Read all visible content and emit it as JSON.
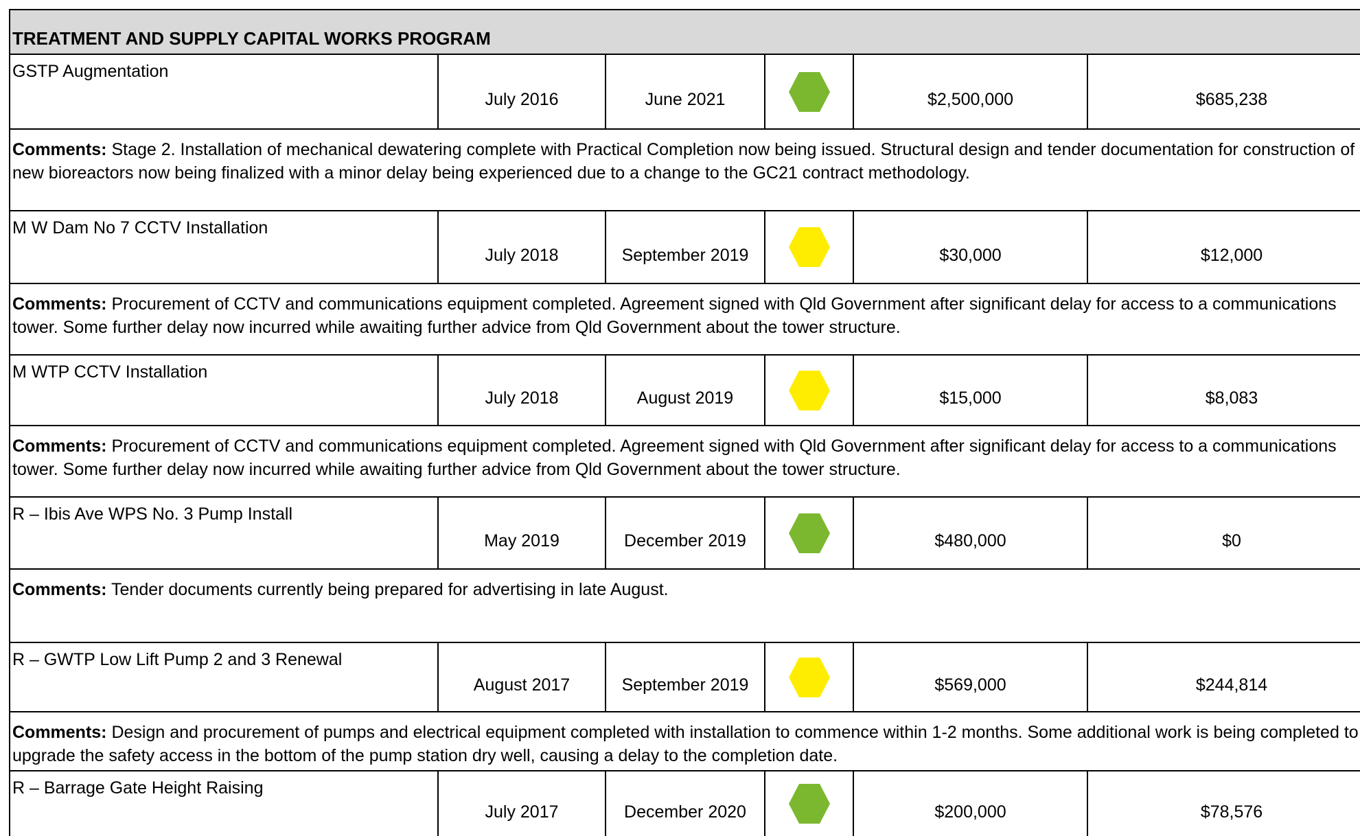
{
  "header": {
    "title": "TREATMENT AND SUPPLY CAPITAL WORKS PROGRAM"
  },
  "comments_label": "Comments:",
  "projects": [
    {
      "name": "GSTP Augmentation",
      "start": "July 2016",
      "end": "June 2021",
      "status_color": "#7cb82f",
      "budget": "$2,500,000",
      "spent": "$685,238",
      "comment": "Stage 2. Installation of mechanical dewatering complete with Practical Completion now being issued. Structural design and tender documentation for construction of new bioreactors now being finalized with a minor delay being experienced due to a change to the GC21 contract methodology."
    },
    {
      "name": "M W Dam No 7 CCTV Installation",
      "start": "July 2018",
      "end": "September 2019",
      "status_color": "#ffed00",
      "budget": "$30,000",
      "spent": "$12,000",
      "comment": "Procurement of CCTV and communications equipment completed. Agreement signed with Qld Government after significant delay for access to a communications tower. Some further delay now incurred while awaiting further advice from Qld Government about the tower structure."
    },
    {
      "name": "M WTP CCTV Installation",
      "start": "July 2018",
      "end": "August 2019",
      "status_color": "#ffed00",
      "budget": "$15,000",
      "spent": "$8,083",
      "comment": "Procurement of CCTV and communications equipment completed. Agreement signed with Qld Government after significant delay for access to a communications tower. Some further delay now incurred while awaiting further advice from Qld Government about the tower structure."
    },
    {
      "name": "R – Ibis Ave WPS No. 3 Pump Install",
      "start": "May 2019",
      "end": "December 2019",
      "status_color": "#7cb82f",
      "budget": "$480,000",
      "spent": "$0",
      "comment": "Tender documents currently being prepared for advertising in late August."
    },
    {
      "name": "R – GWTP Low Lift Pump 2 and 3 Renewal",
      "start": "August 2017",
      "end": "September 2019",
      "status_color": "#ffed00",
      "budget": "$569,000",
      "spent": "$244,814",
      "comment": "Design and procurement of pumps and electrical equipment completed with installation to commence within 1-2 months. Some additional work is being completed to upgrade the safety access in the bottom of the pump station dry well, causing a delay to the completion date."
    },
    {
      "name": "R – Barrage Gate Height Raising",
      "start": "July 2017",
      "end": "December 2020",
      "status_color": "#7cb82f",
      "budget": "$200,000",
      "spent": "$78,576"
    }
  ]
}
